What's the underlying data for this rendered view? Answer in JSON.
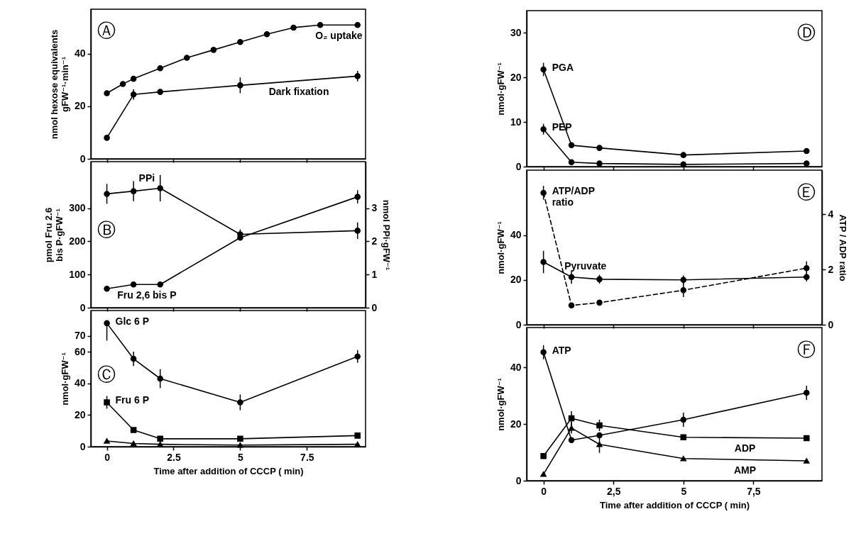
{
  "chart_data": [
    {
      "type": "line",
      "ylabel": "nmol hexose equivalents\ngFW⁻¹·min⁻¹",
      "annotations": [
        "Ⓐ"
      ],
      "xlim": [
        -0.6,
        9.7
      ],
      "xticks": [
        0,
        2.5,
        5,
        7.5
      ],
      "ylim": [
        0,
        57
      ],
      "yticks": [
        0,
        20,
        40
      ],
      "tick_labels": "y",
      "x": [
        0,
        1,
        2,
        5,
        9.4
      ],
      "series": [
        {
          "name": "O₂ uptake",
          "color": "#000000",
          "marker": "circle",
          "x": [
            0,
            0.6,
            1,
            2,
            3,
            4,
            5,
            6,
            7,
            8,
            9.4
          ],
          "values": [
            25,
            28.5,
            30.5,
            34.5,
            38.5,
            41.5,
            44.5,
            47.5,
            50,
            51,
            51
          ]
        },
        {
          "name": "Dark fixation",
          "color": "#000000",
          "marker": "circle",
          "values": [
            8,
            24.5,
            25.5,
            28,
            31.5
          ],
          "errors": [
            null,
            2,
            null,
            3,
            2
          ]
        }
      ]
    },
    {
      "type": "line",
      "ylabel": "pmol Fru 2.6\nbis P·gFW⁻¹",
      "y2label": "nmol PPi·gFW⁻¹",
      "annotations": [
        "Ⓑ"
      ],
      "xlim": [
        -0.6,
        9.7
      ],
      "xticks": [
        0,
        2.5,
        5,
        7.5
      ],
      "ylim": [
        0,
        440
      ],
      "yticks": [
        0,
        100,
        200,
        300
      ],
      "y2lim": [
        0,
        4.4
      ],
      "y2ticks": [
        0,
        1,
        2,
        3
      ],
      "tick_labels": "y",
      "x": [
        0,
        1,
        2,
        5,
        9.4
      ],
      "series": [
        {
          "name": "PPi",
          "color": "#000000",
          "marker": "circle",
          "axis": "y2",
          "values": [
            3.43,
            3.51,
            3.6,
            2.21,
            2.32
          ],
          "errors": [
            0.3,
            0.3,
            0.4,
            0.15,
            0.25
          ]
        },
        {
          "name": "Fru 2,6 bis P",
          "color": "#000000",
          "marker": "circle",
          "values": [
            57,
            70,
            70,
            211,
            334
          ],
          "errors": [
            null,
            null,
            null,
            null,
            20
          ]
        }
      ]
    },
    {
      "type": "line",
      "xlabel": "Time after addition of CCCP ( min)",
      "ylabel": "nmol·gFW⁻¹",
      "annotations": [
        "Ⓒ"
      ],
      "xlim": [
        -0.6,
        9.7
      ],
      "xticks": [
        0,
        2.5,
        5,
        7.5
      ],
      "ylim": [
        0,
        86
      ],
      "yticks": [
        0,
        20,
        40,
        60,
        70
      ],
      "x": [
        0,
        1,
        2,
        5,
        9.4
      ],
      "series": [
        {
          "name": "Glc 6 P",
          "color": "#000000",
          "marker": "circle",
          "values": [
            78,
            55.5,
            43,
            28,
            57
          ],
          "errors": [
            [
              67,
              78
            ],
            4.5,
            6,
            5,
            4
          ]
        },
        {
          "name": "Fru 6 P",
          "color": "#000000",
          "marker": "square",
          "values": [
            28,
            10.5,
            5,
            5,
            7
          ],
          "errors": [
            4,
            null,
            null,
            null,
            null
          ]
        },
        {
          "color": "#000000",
          "marker": "triangle",
          "values": [
            3.6,
            2,
            1.5,
            1,
            1.5
          ]
        }
      ]
    },
    {
      "type": "line",
      "ylabel": "nmol·gFW⁻¹",
      "annotations": [
        "Ⓓ"
      ],
      "xlim": [
        -0.6,
        9.95
      ],
      "xticks": [
        0,
        2.5,
        5,
        7.5
      ],
      "ylim": [
        0,
        35
      ],
      "yticks": [
        0,
        10,
        20,
        30
      ],
      "tick_labels": "y",
      "x": [
        0,
        1,
        2,
        5,
        9.4
      ],
      "series": [
        {
          "name": "PGA",
          "color": "#000000",
          "marker": "circle",
          "values": [
            21.8,
            4.8,
            4.2,
            2.6,
            3.5
          ],
          "errors": [
            1.5,
            null,
            null,
            null,
            null
          ]
        },
        {
          "name": "PEP",
          "color": "#000000",
          "marker": "circle",
          "values": [
            8.4,
            1,
            0.7,
            0.5,
            0.7
          ],
          "errors": [
            1.2,
            null,
            null,
            null,
            null
          ]
        }
      ]
    },
    {
      "type": "line",
      "ylabel": "nmol·gFW⁻¹",
      "y2label": "ATP / ADP ratio",
      "annotations": [
        "Ⓔ"
      ],
      "xlim": [
        -0.6,
        9.95
      ],
      "xticks": [
        0,
        2.5,
        5,
        7.5
      ],
      "ylim": [
        0,
        69
      ],
      "yticks": [
        0,
        20,
        40
      ],
      "y2lim": [
        0,
        5.6
      ],
      "y2ticks": [
        0,
        2,
        4
      ],
      "tick_labels": "y",
      "x": [
        0,
        1,
        2,
        5,
        9.4
      ],
      "series": [
        {
          "name": "Pyruvate",
          "color": "#000000",
          "marker": "circle",
          "values": [
            28,
            21.3,
            20.3,
            20,
            21.3
          ],
          "errors": [
            5,
            3,
            2,
            2,
            2
          ]
        },
        {
          "name": "ATP/ADP\nratio",
          "color": "#000000",
          "marker": "circle",
          "axis": "y2",
          "line_style": "dashed",
          "values": [
            4.78,
            0.7,
            0.8,
            1.25,
            2.05
          ],
          "errors": [
            0.25,
            null,
            null,
            0.25,
            0.25
          ]
        }
      ]
    },
    {
      "type": "line",
      "xlabel": "Time after addition of CCCP ( min)",
      "ylabel": "nmol·gFW⁻¹",
      "annotations": [
        "Ⓕ"
      ],
      "xlim": [
        -0.6,
        9.95
      ],
      "xticks": [
        0,
        {
          "value": 2.5,
          "label": "2,5"
        },
        5,
        {
          "value": 7.5,
          "label": "7,5"
        }
      ],
      "ylim": [
        0,
        54
      ],
      "yticks": [
        0,
        20,
        40
      ],
      "x": [
        0,
        1,
        2,
        5,
        9.4
      ],
      "series": [
        {
          "name": "ATP",
          "color": "#000000",
          "marker": "circle",
          "values": [
            45.3,
            14.3,
            16,
            21.5,
            31
          ],
          "errors": [
            2.5,
            null,
            null,
            2.5,
            2.5
          ]
        },
        {
          "name": "ADP",
          "color": "#000000",
          "marker": "square",
          "values": [
            8.7,
            22,
            19.5,
            15.3,
            15
          ],
          "errors": [
            null,
            2.5,
            2,
            null,
            null
          ]
        },
        {
          "name": "AMP",
          "color": "#000000",
          "marker": "triangle",
          "values": [
            2.3,
            18.6,
            12.8,
            7.8,
            7
          ],
          "errors": [
            null,
            2,
            3,
            null,
            null
          ]
        }
      ]
    }
  ]
}
